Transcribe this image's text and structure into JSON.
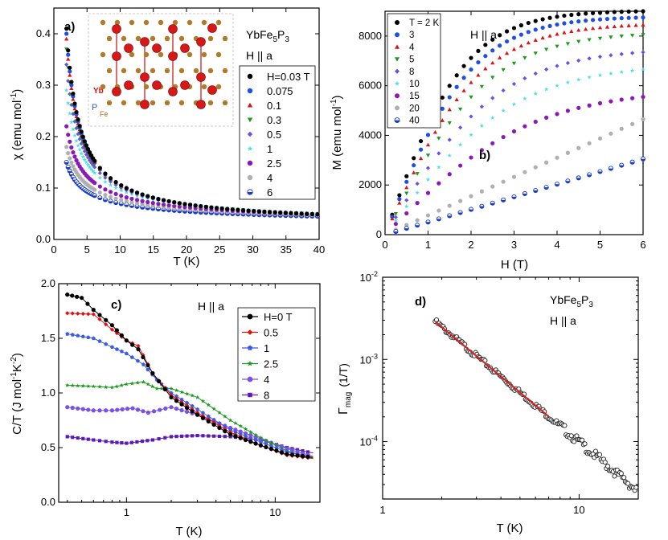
{
  "colors": {
    "axis": "#000000",
    "fit": "#d62020",
    "gray_box": "#999999"
  },
  "chart_data": [
    {
      "panel": "a)",
      "type": "scatter",
      "title": "YbFe5P3",
      "title_main": "YbFe",
      "title_sub1": "5",
      "title_mid": "P",
      "title_sub2": "3",
      "field_label": "H || a",
      "xlabel": "T (K)",
      "ylabel_main": "χ (emu mol",
      "ylabel_sup": "-1",
      "ylabel_end": ")",
      "xlim": [
        0,
        40
      ],
      "ylim": [
        0,
        0.45
      ],
      "xticks": [
        0,
        5,
        10,
        15,
        20,
        25,
        30,
        35,
        40
      ],
      "yticks": [
        0.0,
        0.1,
        0.2,
        0.3,
        0.4
      ],
      "xtick_labels": [
        "0",
        "5",
        "10",
        "15",
        "20",
        "25",
        "30",
        "35",
        "40"
      ],
      "ytick_labels": [
        "0.0",
        "0.1",
        "0.2",
        "0.3",
        "0.4"
      ],
      "inset_labels": {
        "yb": "Yb",
        "p": "P",
        "fe": "Fe"
      },
      "series": [
        {
          "name": "H=0.03 T",
          "color": "#000000",
          "marker": "circle",
          "chi2": 0.41
        },
        {
          "name": "0.075",
          "color": "#1f4fe0",
          "marker": "circle",
          "chi2": 0.4
        },
        {
          "name": "0.1",
          "color": "#e01010",
          "marker": "triangle",
          "chi2": 0.39
        },
        {
          "name": "0.3",
          "color": "#1a9a1a",
          "marker": "tridown",
          "chi2": 0.37
        },
        {
          "name": "0.5",
          "color": "#6a50e8",
          "marker": "diamond",
          "chi2": 0.34
        },
        {
          "name": "1",
          "color": "#49e0e0",
          "marker": "star",
          "chi2": 0.29
        },
        {
          "name": "2.5",
          "color": "#8a1ab8",
          "marker": "circle",
          "chi2": 0.22
        },
        {
          "name": "4",
          "color": "#b0b0b0",
          "marker": "circle",
          "chi2": 0.18
        },
        {
          "name": "6",
          "color": "#1a3ac8",
          "marker": "halfcircle",
          "chi2": 0.15
        }
      ]
    },
    {
      "panel": "b)",
      "type": "scatter",
      "field_label": "H || a",
      "xlabel": "H (T)",
      "ylabel": "M (emu mol-1)",
      "ylabel_main": "M (emu mol",
      "ylabel_sup": "-1",
      "ylabel_end": ")",
      "xlim": [
        0,
        6
      ],
      "ylim": [
        0,
        9000
      ],
      "xticks": [
        0,
        1,
        2,
        3,
        4,
        5,
        6
      ],
      "yticks": [
        0,
        2000,
        4000,
        6000,
        8000
      ],
      "xtick_labels": [
        "0",
        "1",
        "2",
        "3",
        "4",
        "5",
        "6"
      ],
      "ytick_labels": [
        "0",
        "2000",
        "4000",
        "6000",
        "8000"
      ],
      "series": [
        {
          "name": "T = 2 K",
          "color": "#000000",
          "marker": "circle",
          "m6": 9000
        },
        {
          "name": "3",
          "color": "#1f4fe0",
          "marker": "circle",
          "m6": 8750
        },
        {
          "name": "4",
          "color": "#e01010",
          "marker": "triangle",
          "m6": 8450
        },
        {
          "name": "5",
          "color": "#1a9a1a",
          "marker": "tridown",
          "m6": 8050
        },
        {
          "name": "8",
          "color": "#6a50e8",
          "marker": "diamond",
          "m6": 7350
        },
        {
          "name": "10",
          "color": "#49e0e0",
          "marker": "star",
          "m6": 6650
        },
        {
          "name": "15",
          "color": "#8a1ab8",
          "marker": "circle",
          "m6": 5550
        },
        {
          "name": "20",
          "color": "#b0b0b0",
          "marker": "circle",
          "m6": 4650
        },
        {
          "name": "40",
          "color": "#1a3ac8",
          "marker": "halfcircle",
          "m6": 3050
        }
      ]
    },
    {
      "panel": "c)",
      "type": "line",
      "field_label": "H || a",
      "xlabel": "T (K)",
      "xscale": "log",
      "ylabel_main": "C/T (J mol",
      "ylabel_sup1": "-1",
      "ylabel_mid": "K",
      "ylabel_sup2": "-2",
      "ylabel_end": ")",
      "xlim": [
        0.35,
        20
      ],
      "ylim": [
        0,
        2.0
      ],
      "xticks": [
        1,
        10
      ],
      "xtick_labels": [
        "1",
        "10"
      ],
      "yticks": [
        0.0,
        0.5,
        1.0,
        1.5,
        2.0
      ],
      "ytick_labels": [
        "0.0",
        "0.5",
        "1.0",
        "1.5",
        "2.0"
      ],
      "series": [
        {
          "name": "H=0 T",
          "color": "#000000",
          "marker": "circle",
          "points": [
            [
              0.4,
              1.9
            ],
            [
              0.5,
              1.87
            ],
            [
              0.6,
              1.76
            ],
            [
              0.8,
              1.62
            ],
            [
              1.0,
              1.48
            ],
            [
              1.2,
              1.4
            ],
            [
              1.5,
              1.18
            ],
            [
              2.0,
              0.96
            ],
            [
              3.0,
              0.8
            ],
            [
              5.0,
              0.62
            ],
            [
              8.0,
              0.52
            ],
            [
              12.0,
              0.44
            ],
            [
              18.0,
              0.41
            ]
          ]
        },
        {
          "name": "0.5",
          "color": "#e01010",
          "marker": "diamond",
          "points": [
            [
              0.4,
              1.73
            ],
            [
              0.6,
              1.72
            ],
            [
              0.8,
              1.58
            ],
            [
              1.0,
              1.48
            ],
            [
              1.2,
              1.43
            ],
            [
              1.5,
              1.18
            ],
            [
              2.0,
              0.98
            ],
            [
              3.0,
              0.82
            ],
            [
              5.0,
              0.64
            ],
            [
              8.0,
              0.52
            ],
            [
              12.0,
              0.43
            ],
            [
              18.0,
              0.4
            ]
          ]
        },
        {
          "name": "1",
          "color": "#3a5ae8",
          "marker": "pentagon",
          "points": [
            [
              0.4,
              1.54
            ],
            [
              0.6,
              1.5
            ],
            [
              0.8,
              1.42
            ],
            [
              1.0,
              1.36
            ],
            [
              1.3,
              1.26
            ],
            [
              1.6,
              1.12
            ],
            [
              2.0,
              1.0
            ],
            [
              3.0,
              0.85
            ],
            [
              5.0,
              0.66
            ],
            [
              8.0,
              0.55
            ],
            [
              12.0,
              0.46
            ],
            [
              18.0,
              0.41
            ]
          ]
        },
        {
          "name": "2.5",
          "color": "#1a9a1a",
          "marker": "star",
          "points": [
            [
              0.4,
              1.07
            ],
            [
              0.6,
              1.06
            ],
            [
              0.8,
              1.05
            ],
            [
              1.0,
              1.08
            ],
            [
              1.3,
              1.1
            ],
            [
              1.6,
              1.04
            ],
            [
              2.0,
              1.04
            ],
            [
              3.0,
              0.96
            ],
            [
              5.0,
              0.75
            ],
            [
              8.0,
              0.59
            ],
            [
              12.0,
              0.47
            ],
            [
              18.0,
              0.4
            ]
          ]
        },
        {
          "name": "4",
          "color": "#7a50e8",
          "marker": "circle",
          "points": [
            [
              0.4,
              0.87
            ],
            [
              0.6,
              0.84
            ],
            [
              0.8,
              0.84
            ],
            [
              1.1,
              0.86
            ],
            [
              1.4,
              0.82
            ],
            [
              2.0,
              0.87
            ],
            [
              3.0,
              0.8
            ],
            [
              5.0,
              0.68
            ],
            [
              8.0,
              0.58
            ],
            [
              12.0,
              0.49
            ],
            [
              18.0,
              0.42
            ]
          ]
        },
        {
          "name": "8",
          "color": "#5a1ab8",
          "marker": "square",
          "points": [
            [
              0.4,
              0.6
            ],
            [
              0.6,
              0.57
            ],
            [
              0.8,
              0.55
            ],
            [
              1.0,
              0.54
            ],
            [
              1.5,
              0.57
            ],
            [
              2.0,
              0.6
            ],
            [
              3.0,
              0.61
            ],
            [
              5.0,
              0.6
            ],
            [
              8.0,
              0.57
            ],
            [
              12.0,
              0.5
            ],
            [
              18.0,
              0.45
            ]
          ]
        }
      ]
    },
    {
      "panel": "d)",
      "type": "scatter",
      "title": "YbFe5P3",
      "title_main": "YbFe",
      "title_sub1": "5",
      "title_mid": "P",
      "title_sub2": "3",
      "field_label": "H || a",
      "xlabel": "T (K)",
      "xscale": "log",
      "yscale": "log",
      "ylabel_main": "Γ",
      "ylabel_sub": "mag",
      "ylabel_end": "(1/T)",
      "xlim": [
        1,
        20
      ],
      "ylim": [
        2e-05,
        0.01
      ],
      "xticks": [
        1,
        10
      ],
      "xtick_labels": [
        "1",
        "10"
      ],
      "yticks": [
        0.0001,
        0.001,
        0.01
      ],
      "ytick_bases": [
        "10",
        "10",
        "10"
      ],
      "ytick_exps": [
        "-4",
        "-3",
        "-2"
      ],
      "data_range": {
        "t_start": 1.85,
        "t_end": 19.5,
        "g_start": 0.0029,
        "g_end": 2.6e-05,
        "fit_t_end": 7.0
      }
    }
  ]
}
